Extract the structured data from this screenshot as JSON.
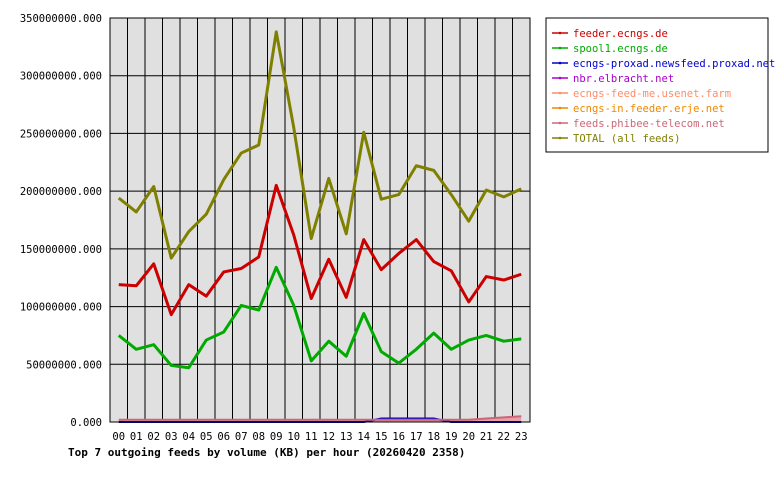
{
  "chart_data": {
    "type": "line",
    "title": "Top 7 outgoing feeds by volume (KB) per hour (20260420 2358)",
    "xlabel": "",
    "ylabel": "",
    "ylim": [
      0,
      350000000
    ],
    "yticks": [
      "0.000",
      "50000000.000",
      "100000000.000",
      "150000000.000",
      "200000000.000",
      "250000000.000",
      "300000000.000",
      "350000000.000"
    ],
    "categories": [
      "00",
      "01",
      "02",
      "03",
      "04",
      "05",
      "06",
      "07",
      "08",
      "09",
      "10",
      "11",
      "12",
      "13",
      "14",
      "15",
      "16",
      "17",
      "18",
      "19",
      "20",
      "21",
      "22",
      "23"
    ],
    "grid": true,
    "legend_position": "top-right",
    "background_color": "#e0e0e0",
    "series": [
      {
        "name": "feeder.ecngs.de",
        "color": "#cc0000",
        "values": [
          119000000,
          118000000,
          137000000,
          93000000,
          119000000,
          109000000,
          130000000,
          133000000,
          143000000,
          205000000,
          162000000,
          107000000,
          141000000,
          108000000,
          158000000,
          132000000,
          146000000,
          158000000,
          139000000,
          131000000,
          104000000,
          126000000,
          123000000,
          128000000
        ]
      },
      {
        "name": "spool1.ecngs.de",
        "color": "#00aa00",
        "values": [
          75000000,
          63000000,
          67000000,
          49000000,
          47000000,
          71000000,
          78000000,
          101000000,
          97000000,
          134000000,
          101000000,
          53000000,
          70000000,
          57000000,
          94000000,
          61000000,
          51000000,
          63000000,
          77000000,
          63000000,
          71000000,
          75000000,
          70000000,
          72000000
        ]
      },
      {
        "name": "ecngs-proxad.newsfeed.proxad.net",
        "color": "#0000cc",
        "values": [
          0,
          0,
          0,
          0,
          0,
          0,
          0,
          0,
          0,
          0,
          0,
          0,
          0,
          0,
          0,
          3000000,
          3000000,
          3000000,
          3000000,
          0,
          0,
          0,
          0,
          0
        ]
      },
      {
        "name": "nbr.elbracht.net",
        "color": "#aa00cc",
        "values": [
          0,
          0,
          0,
          0,
          0,
          0,
          0,
          0,
          0,
          0,
          0,
          0,
          0,
          0,
          0,
          0,
          0,
          0,
          0,
          0,
          0,
          0,
          0,
          0
        ]
      },
      {
        "name": "ecngs-feed-me.usenet.farm",
        "color": "#ff8c69",
        "values": [
          0,
          0,
          0,
          0,
          0,
          0,
          0,
          0,
          0,
          0,
          0,
          0,
          0,
          0,
          0,
          0,
          0,
          0,
          0,
          0,
          0,
          0,
          0,
          0
        ]
      },
      {
        "name": "ecngs-in.feeder.erje.net",
        "color": "#ee8800",
        "values": [
          0,
          0,
          0,
          0,
          0,
          0,
          0,
          0,
          0,
          0,
          0,
          0,
          0,
          0,
          0,
          0,
          0,
          0,
          0,
          0,
          0,
          0,
          0,
          0
        ]
      },
      {
        "name": "feeds.phibee-telecom.net",
        "color": "#cc6677",
        "values": [
          2000000,
          2000000,
          2000000,
          2000000,
          2000000,
          2000000,
          2000000,
          2000000,
          2000000,
          2000000,
          2000000,
          2000000,
          2000000,
          2000000,
          2000000,
          2000000,
          2000000,
          2000000,
          2000000,
          2000000,
          2000000,
          3000000,
          4000000,
          5000000
        ]
      },
      {
        "name": "TOTAL (all feeds)",
        "color": "#808000",
        "values": [
          194000000,
          182000000,
          204000000,
          142000000,
          165000000,
          180000000,
          210000000,
          233000000,
          240000000,
          338000000,
          255000000,
          159000000,
          211000000,
          163000000,
          251000000,
          193000000,
          197000000,
          222000000,
          218000000,
          197000000,
          174000000,
          201000000,
          195000000,
          202000000
        ]
      }
    ]
  }
}
